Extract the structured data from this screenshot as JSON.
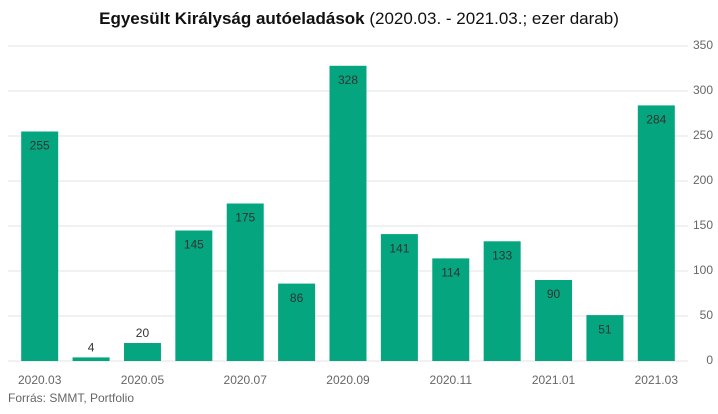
{
  "chart_data": {
    "type": "bar",
    "title": "Egyesült Királyság autóeladások",
    "subtitle": "(2020.03. - 2021.03.; ezer darab)",
    "source": "Forrás: SMMT, Portfolio",
    "categories": [
      "2020.03",
      null,
      "2020.05",
      null,
      "2020.07",
      null,
      "2020.09",
      null,
      "2020.11",
      null,
      "2021.01",
      null,
      "2021.03"
    ],
    "values": [
      255,
      4,
      20,
      145,
      175,
      86,
      328,
      141,
      114,
      133,
      90,
      51,
      284
    ],
    "color": "#04a57f",
    "ylim": [
      0,
      350
    ],
    "yticks": [
      0,
      50,
      100,
      150,
      200,
      250,
      300,
      350
    ],
    "grid": true
  }
}
